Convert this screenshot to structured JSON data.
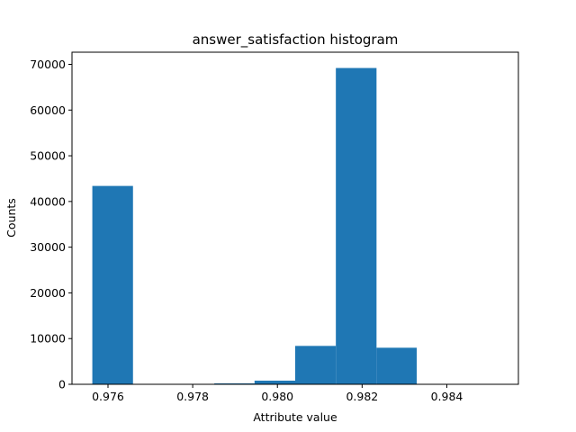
{
  "chart_data": {
    "type": "bar",
    "title": "answer_satisfaction histogram",
    "xlabel": "Attribute value",
    "ylabel": "Counts",
    "bins": [
      {
        "x0": 0.97563,
        "x1": 0.97659,
        "value": 43400
      },
      {
        "x0": 0.97659,
        "x1": 0.97755,
        "value": 0
      },
      {
        "x0": 0.97755,
        "x1": 0.97851,
        "value": 0
      },
      {
        "x0": 0.97851,
        "x1": 0.97946,
        "value": 200
      },
      {
        "x0": 0.97946,
        "x1": 0.98042,
        "value": 800
      },
      {
        "x0": 0.98042,
        "x1": 0.98138,
        "value": 8400
      },
      {
        "x0": 0.98138,
        "x1": 0.98234,
        "value": 69200
      },
      {
        "x0": 0.98234,
        "x1": 0.98329,
        "value": 8000
      },
      {
        "x0": 0.98329,
        "x1": 0.98425,
        "value": 0
      },
      {
        "x0": 0.98425,
        "x1": 0.98521,
        "value": 0
      }
    ],
    "xlim": [
      0.97515,
      0.98569
    ],
    "ylim": [
      0,
      72660
    ],
    "xticks": [
      0.976,
      0.978,
      0.98,
      0.982,
      0.984
    ],
    "xtick_labels": [
      "0.976",
      "0.978",
      "0.980",
      "0.982",
      "0.984"
    ],
    "yticks": [
      0,
      10000,
      20000,
      30000,
      40000,
      50000,
      60000,
      70000
    ],
    "ytick_labels": [
      "0",
      "10000",
      "20000",
      "30000",
      "40000",
      "50000",
      "60000",
      "70000"
    ],
    "bar_color": "#1f77b4",
    "grid": false,
    "legend": "none"
  }
}
